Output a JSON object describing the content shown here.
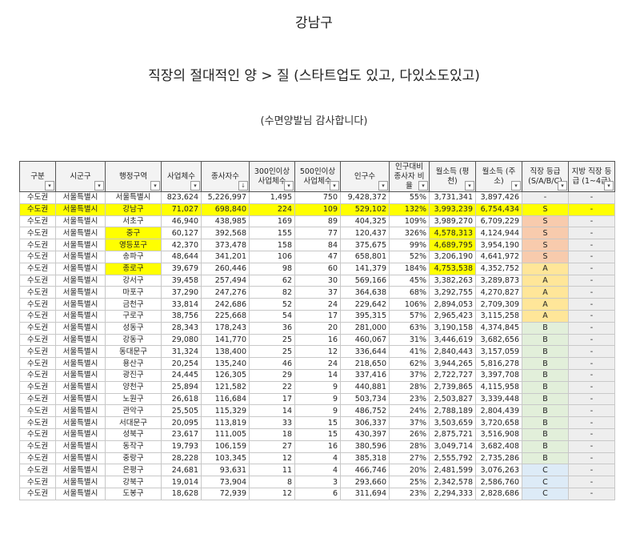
{
  "title": "강남구",
  "subtitle": "직장의 절대적인 양 > 질 (스타트업도 있고, 다있소도있고)",
  "note": "(수면양발님 감사합니다)",
  "columns": [
    "구분",
    "시군구",
    "행정구역",
    "사업체수",
    "종사자수",
    "300인이상 사업체수",
    "500인이상 사업체수",
    "인구수",
    "인구대비 종사자 비율",
    "월소득 (평천)",
    "월소득 (주소)",
    "직장 등급 (S/A/B/C)",
    "지방 직장 등급 (1~4급)"
  ],
  "rows": [
    [
      "수도권",
      "서울특별시",
      "서울특별시",
      "823,624",
      "5,226,997",
      "1,495",
      "750",
      "9,428,372",
      "55%",
      "3,731,341",
      "3,897,426",
      "-",
      "-"
    ],
    [
      "수도권",
      "서울특별시",
      "강남구",
      "71,027",
      "698,840",
      "224",
      "109",
      "529,102",
      "132%",
      "3,993,239",
      "6,754,434",
      "S",
      "-"
    ],
    [
      "수도권",
      "서울특별시",
      "서초구",
      "46,940",
      "438,985",
      "169",
      "89",
      "404,325",
      "109%",
      "3,989,270",
      "6,709,229",
      "S",
      "-"
    ],
    [
      "수도권",
      "서울특별시",
      "중구",
      "60,127",
      "392,568",
      "155",
      "77",
      "120,437",
      "326%",
      "4,578,313",
      "4,124,944",
      "S",
      "-"
    ],
    [
      "수도권",
      "서울특별시",
      "영등포구",
      "42,370",
      "373,478",
      "158",
      "84",
      "375,675",
      "99%",
      "4,689,795",
      "3,954,190",
      "S",
      "-"
    ],
    [
      "수도권",
      "서울특별시",
      "송파구",
      "48,644",
      "341,201",
      "106",
      "47",
      "658,801",
      "52%",
      "3,206,190",
      "4,641,972",
      "S",
      "-"
    ],
    [
      "수도권",
      "서울특별시",
      "종로구",
      "39,679",
      "260,446",
      "98",
      "60",
      "141,379",
      "184%",
      "4,753,538",
      "4,352,752",
      "A",
      "-"
    ],
    [
      "수도권",
      "서울특별시",
      "강서구",
      "39,458",
      "257,494",
      "62",
      "30",
      "569,166",
      "45%",
      "3,382,263",
      "3,289,873",
      "A",
      "-"
    ],
    [
      "수도권",
      "서울특별시",
      "마포구",
      "37,290",
      "247,276",
      "82",
      "37",
      "364,638",
      "68%",
      "3,292,755",
      "4,270,827",
      "A",
      "-"
    ],
    [
      "수도권",
      "서울특별시",
      "금천구",
      "33,814",
      "242,686",
      "52",
      "24",
      "229,642",
      "106%",
      "2,894,053",
      "2,709,309",
      "A",
      "-"
    ],
    [
      "수도권",
      "서울특별시",
      "구로구",
      "38,756",
      "225,668",
      "54",
      "17",
      "395,315",
      "57%",
      "2,965,423",
      "3,115,258",
      "A",
      "-"
    ],
    [
      "수도권",
      "서울특별시",
      "성동구",
      "28,343",
      "178,243",
      "36",
      "20",
      "281,000",
      "63%",
      "3,190,158",
      "4,374,845",
      "B",
      "-"
    ],
    [
      "수도권",
      "서울특별시",
      "강동구",
      "29,080",
      "141,770",
      "25",
      "16",
      "460,067",
      "31%",
      "3,446,619",
      "3,682,656",
      "B",
      "-"
    ],
    [
      "수도권",
      "서울특별시",
      "동대문구",
      "31,324",
      "138,400",
      "25",
      "12",
      "336,644",
      "41%",
      "2,840,443",
      "3,157,059",
      "B",
      "-"
    ],
    [
      "수도권",
      "서울특별시",
      "용산구",
      "20,254",
      "135,240",
      "46",
      "24",
      "218,650",
      "62%",
      "3,944,265",
      "5,816,278",
      "B",
      "-"
    ],
    [
      "수도권",
      "서울특별시",
      "광진구",
      "24,445",
      "126,305",
      "29",
      "14",
      "337,416",
      "37%",
      "2,722,727",
      "3,397,708",
      "B",
      "-"
    ],
    [
      "수도권",
      "서울특별시",
      "양천구",
      "25,894",
      "121,582",
      "22",
      "9",
      "440,881",
      "28%",
      "2,739,865",
      "4,115,958",
      "B",
      "-"
    ],
    [
      "수도권",
      "서울특별시",
      "노원구",
      "26,618",
      "116,684",
      "17",
      "9",
      "503,734",
      "23%",
      "2,503,827",
      "3,339,448",
      "B",
      "-"
    ],
    [
      "수도권",
      "서울특별시",
      "관악구",
      "25,505",
      "115,329",
      "14",
      "9",
      "486,752",
      "24%",
      "2,788,189",
      "2,804,439",
      "B",
      "-"
    ],
    [
      "수도권",
      "서울특별시",
      "서대문구",
      "20,095",
      "113,819",
      "33",
      "15",
      "306,337",
      "37%",
      "3,503,659",
      "3,720,658",
      "B",
      "-"
    ],
    [
      "수도권",
      "서울특별시",
      "성북구",
      "23,617",
      "111,005",
      "18",
      "15",
      "430,397",
      "26%",
      "2,875,721",
      "3,516,908",
      "B",
      "-"
    ],
    [
      "수도권",
      "서울특별시",
      "동작구",
      "19,793",
      "106,159",
      "27",
      "16",
      "380,596",
      "28%",
      "3,049,714",
      "3,682,408",
      "B",
      "-"
    ],
    [
      "수도권",
      "서울특별시",
      "중랑구",
      "28,228",
      "103,345",
      "12",
      "4",
      "385,318",
      "27%",
      "2,555,792",
      "2,735,286",
      "B",
      "-"
    ],
    [
      "수도권",
      "서울특별시",
      "은평구",
      "24,681",
      "93,631",
      "11",
      "4",
      "466,746",
      "20%",
      "2,481,599",
      "3,076,263",
      "C",
      "-"
    ],
    [
      "수도권",
      "서울특별시",
      "강북구",
      "19,014",
      "73,904",
      "8",
      "3",
      "293,660",
      "25%",
      "2,342,578",
      "2,586,760",
      "C",
      "-"
    ],
    [
      "수도권",
      "서울특별시",
      "도봉구",
      "18,628",
      "72,939",
      "12",
      "6",
      "311,694",
      "23%",
      "2,294,333",
      "2,828,686",
      "C",
      "-"
    ]
  ],
  "highlight_full_rows": [
    1
  ],
  "highlight_cells": [
    [
      3,
      2
    ],
    [
      4,
      2
    ],
    [
      6,
      2
    ],
    [
      3,
      9
    ],
    [
      4,
      9
    ],
    [
      6,
      9
    ]
  ],
  "grade_colors": {
    "S": "#f8cbad",
    "A": "#ffe699",
    "B": "#e2efda",
    "C": "#ddebf7",
    "-": "#eeeeee"
  },
  "highlight_color": "#ffff00"
}
